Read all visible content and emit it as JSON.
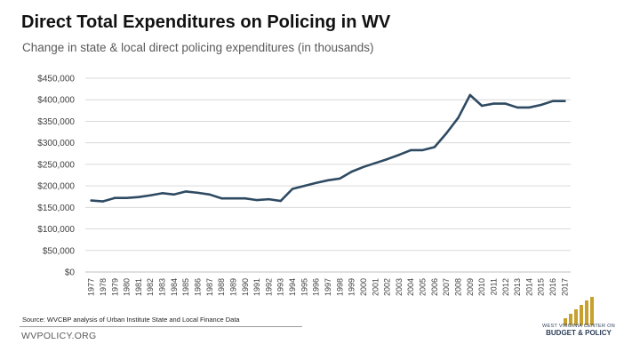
{
  "header": {
    "title": "Direct Total Expenditures on Policing in WV",
    "subtitle": "Change in state & local direct policing expenditures (in thousands)"
  },
  "footer": {
    "source": "Source: WVCBP analysis of Urban Institute State and Local Finance Data",
    "site": "WVPOLICY.ORG",
    "logo_line1": "WEST VIRGINIA CENTER ON",
    "logo_line2": "BUDGET & POLICY"
  },
  "colors": {
    "line": "#2e4a62",
    "grid": "#d9d9d9",
    "axis_text": "#404040",
    "logo_gold": "#c8a02e",
    "logo_navy": "#2c3e5a"
  },
  "chart_data": {
    "type": "line",
    "title": "Direct Total Expenditures on Policing in WV",
    "subtitle": "Change in state & local direct policing expenditures (in thousands)",
    "xlabel": "",
    "ylabel": "",
    "ylim": [
      0,
      450000
    ],
    "yticks": [
      0,
      50000,
      100000,
      150000,
      200000,
      250000,
      300000,
      350000,
      400000,
      450000
    ],
    "ytick_labels": [
      "$0",
      "$50,000",
      "$100,000",
      "$150,000",
      "$200,000",
      "$250,000",
      "$300,000",
      "$350,000",
      "$400,000",
      "$450,000"
    ],
    "grid": true,
    "legend": "none",
    "categories": [
      "1977",
      "1978",
      "1979",
      "1980",
      "1981",
      "1982",
      "1983",
      "1984",
      "1985",
      "1986",
      "1987",
      "1988",
      "1989",
      "1990",
      "1991",
      "1992",
      "1993",
      "1994",
      "1995",
      "1996",
      "1997",
      "1998",
      "1999",
      "2000",
      "2001",
      "2002",
      "2003",
      "2004",
      "2005",
      "2006",
      "2007",
      "2008",
      "2009",
      "2010",
      "2011",
      "2012",
      "2013",
      "2014",
      "2015",
      "2016",
      "2017"
    ],
    "series": [
      {
        "name": "Direct policing expenditures",
        "values": [
          166000,
          164000,
          172000,
          172000,
          174000,
          178000,
          183000,
          180000,
          187000,
          184000,
          180000,
          171000,
          171000,
          171000,
          167000,
          169000,
          165000,
          193000,
          200000,
          207000,
          213000,
          217000,
          233000,
          244000,
          253000,
          262000,
          272000,
          283000,
          283000,
          290000,
          322000,
          358000,
          411000,
          386000,
          391000,
          391000,
          382000,
          382000,
          388000,
          397000,
          397000
        ]
      }
    ]
  }
}
